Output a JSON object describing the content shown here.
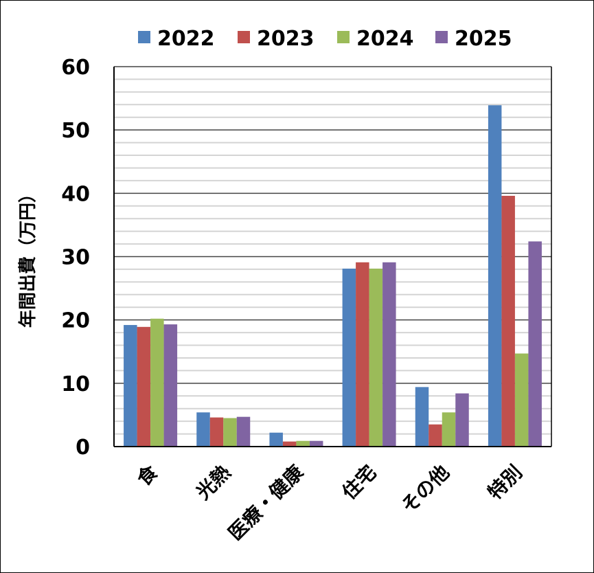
{
  "chart_data": {
    "type": "bar",
    "title": "",
    "xlabel": "",
    "ylabel": "年間出費（万円）",
    "ylim": [
      0,
      60
    ],
    "yticks": [
      0,
      10,
      20,
      30,
      40,
      50,
      60
    ],
    "minor_grid_step": 2,
    "grid": true,
    "legend": "top",
    "categories": [
      "食",
      "光熱",
      "医療・健康",
      "住宅",
      "その他",
      "特別"
    ],
    "series": [
      {
        "name": "2022",
        "color": "#4F81BD",
        "values": [
          19.2,
          5.4,
          2.2,
          28.1,
          9.4,
          53.9
        ]
      },
      {
        "name": "2023",
        "color": "#C0504D",
        "values": [
          18.9,
          4.6,
          0.8,
          29.1,
          3.5,
          39.6
        ]
      },
      {
        "name": "2024",
        "color": "#9BBB59",
        "values": [
          20.2,
          4.5,
          0.9,
          28.1,
          5.4,
          14.7
        ]
      },
      {
        "name": "2025",
        "color": "#8064A2",
        "values": [
          19.3,
          4.7,
          0.9,
          29.1,
          8.4,
          32.4
        ]
      }
    ]
  }
}
